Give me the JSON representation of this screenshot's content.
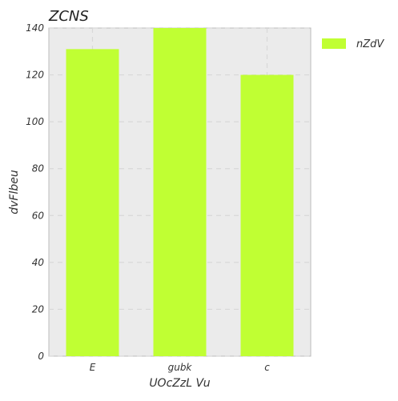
{
  "chart_data": {
    "type": "bar",
    "title": "ZCNS",
    "xlabel": "UOcZzL Vu",
    "ylabel": "dvFlbeu",
    "categories": [
      "E",
      "gubk",
      "c"
    ],
    "series": [
      {
        "name": "nZdV",
        "values": [
          131,
          140,
          120
        ],
        "color": "#c0ff33"
      }
    ],
    "ylim": [
      0,
      140
    ],
    "yticks": [
      0,
      20,
      40,
      60,
      80,
      100,
      120,
      140
    ],
    "ytick_labels": [
      "0",
      "20",
      "40",
      "60",
      "80",
      "100",
      "120",
      "140"
    ],
    "grid": true,
    "legend_position": "outside-right",
    "colors": {
      "plot_background": "#ebebeb",
      "grid": "#d8d8d8",
      "bar": "#c0ff33"
    }
  }
}
